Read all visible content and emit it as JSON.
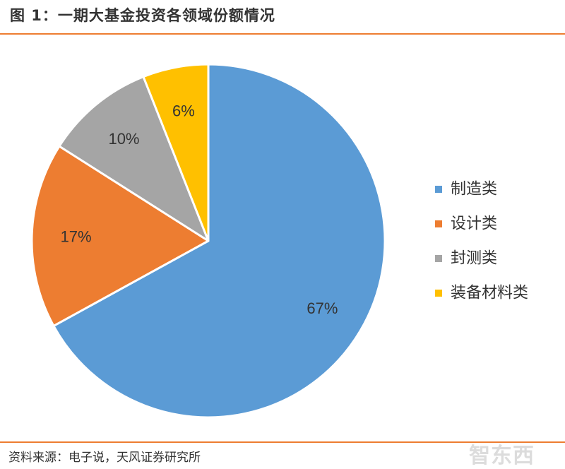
{
  "figure": {
    "title": "图 1：一期大基金投资各领域份额情况",
    "source": "资料来源：电子说，天风证券研究所",
    "watermark": "智东西"
  },
  "chart_data": {
    "type": "pie",
    "title": "",
    "categories": [
      "制造类",
      "设计类",
      "封测类",
      "装备材料类"
    ],
    "values": [
      67,
      17,
      10,
      6
    ],
    "labels": [
      "67%",
      "17%",
      "10%",
      "6%"
    ],
    "colors": [
      "#5B9BD5",
      "#ED7D31",
      "#A5A5A5",
      "#FFC000"
    ],
    "legend_placement": "right"
  }
}
